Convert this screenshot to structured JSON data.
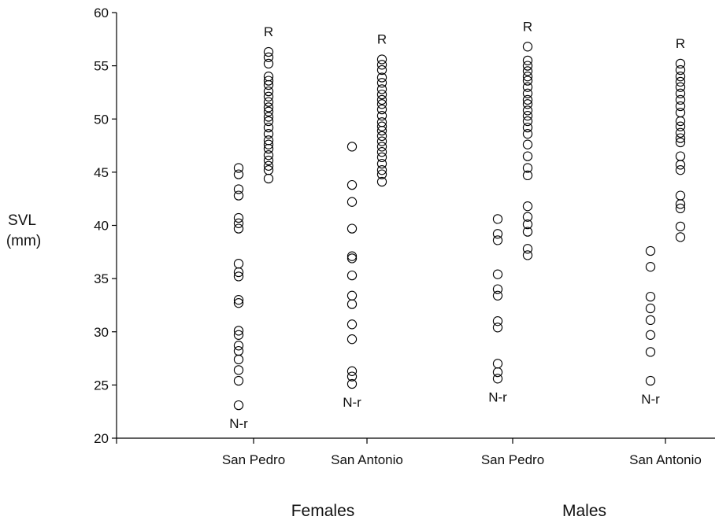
{
  "chart_data": {
    "type": "scatter",
    "ylabel_line1": "SVL",
    "ylabel_line2": "(mm)",
    "ylim": [
      20,
      60
    ],
    "yticks": [
      "20",
      "25",
      "30",
      "35",
      "40",
      "45",
      "50",
      "55",
      "60"
    ],
    "categories": [
      "San Pedro",
      "San Antonio",
      "San Pedro",
      "San Antonio"
    ],
    "groups": [
      {
        "label": "Females",
        "categories": [
          0,
          1
        ]
      },
      {
        "label": "Males",
        "categories": [
          2,
          3
        ]
      }
    ],
    "series": [
      {
        "name": "N-r",
        "label": "N-r",
        "points": [
          {
            "category": 0,
            "values": [
              45.4,
              44.8,
              43.4,
              42.8,
              40.7,
              40.2,
              39.7,
              36.4,
              35.6,
              35.2,
              33.0,
              32.7,
              30.1,
              29.7,
              28.7,
              28.2,
              27.4,
              26.4,
              25.4,
              23.1
            ]
          },
          {
            "category": 1,
            "values": [
              47.4,
              43.8,
              42.2,
              39.7,
              37.1,
              36.9,
              35.3,
              33.4,
              32.6,
              30.7,
              29.3,
              26.3,
              25.8,
              25.1
            ]
          },
          {
            "category": 2,
            "values": [
              40.6,
              39.2,
              38.6,
              35.4,
              34.0,
              33.4,
              31.0,
              30.4,
              27.0,
              26.2,
              25.6
            ]
          },
          {
            "category": 3,
            "values": [
              37.6,
              36.1,
              33.3,
              32.2,
              31.1,
              29.7,
              28.1,
              25.4
            ]
          }
        ]
      },
      {
        "name": "R",
        "label": "R",
        "points": [
          {
            "category": 0,
            "values": [
              56.3,
              55.8,
              55.2,
              54.0,
              53.6,
              53.2,
              52.6,
              52.1,
              51.6,
              51.1,
              50.7,
              50.2,
              49.8,
              49.2,
              48.6,
              48.0,
              47.6,
              47.2,
              46.6,
              46.1,
              45.6,
              45.2,
              44.4
            ]
          },
          {
            "category": 1,
            "values": [
              55.6,
              55.1,
              54.6,
              53.9,
              53.4,
              52.8,
              52.3,
              51.8,
              51.4,
              50.9,
              50.3,
              49.7,
              49.3,
              48.9,
              48.4,
              47.9,
              47.4,
              46.9,
              46.4,
              45.8,
              45.2,
              44.8,
              44.1
            ]
          },
          {
            "category": 2,
            "values": [
              56.8,
              55.5,
              55.0,
              54.5,
              54.0,
              53.6,
              53.0,
              52.4,
              51.8,
              51.4,
              50.8,
              50.3,
              49.8,
              49.2,
              48.6,
              47.6,
              46.5,
              45.4,
              44.7,
              41.8,
              40.8,
              40.1,
              39.4,
              37.8,
              37.2
            ]
          },
          {
            "category": 3,
            "values": [
              55.2,
              54.6,
              54.0,
              53.5,
              53.0,
              52.4,
              51.8,
              51.2,
              50.6,
              49.8,
              49.3,
              48.7,
              48.2,
              47.8,
              46.5,
              45.7,
              45.2,
              42.8,
              42.0,
              41.6,
              39.9,
              38.9
            ]
          }
        ]
      }
    ]
  }
}
